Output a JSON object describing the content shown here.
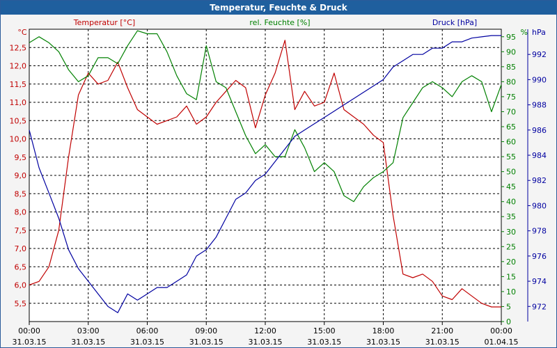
{
  "window": {
    "title": "Temperatur, Feuchte & Druck"
  },
  "colors": {
    "temperature": "#c00000",
    "humidity": "#008000",
    "pressure": "#0000a0",
    "titlebar": "#1f5f9e"
  },
  "chart_data": {
    "type": "line",
    "title": "Temperatur, Feuchte & Druck",
    "grid": true,
    "x_ticks": [
      {
        "time": "00:00",
        "date": "31.03.15"
      },
      {
        "time": "03:00",
        "date": "31.03.15"
      },
      {
        "time": "06:00",
        "date": "31.03.15"
      },
      {
        "time": "09:00",
        "date": "31.03.15"
      },
      {
        "time": "12:00",
        "date": "31.03.15"
      },
      {
        "time": "15:00",
        "date": "31.03.15"
      },
      {
        "time": "18:00",
        "date": "31.03.15"
      },
      {
        "time": "21:00",
        "date": "31.03.15"
      },
      {
        "time": "00:00",
        "date": "01.04.15"
      }
    ],
    "x_unit": "hours",
    "xlim": [
      0,
      24
    ],
    "axes": {
      "temperature": {
        "label": "Temperatur [°C]",
        "unit": "°C",
        "ylim": [
          5.0,
          13.0
        ],
        "ticks": [
          "5,5",
          "6,0",
          "6,5",
          "7,0",
          "7,5",
          "8,0",
          "8,5",
          "9,0",
          "9,5",
          "10,0",
          "10,5",
          "11,0",
          "11,5",
          "12,0",
          "12,5"
        ]
      },
      "humidity": {
        "label": "rel. Feuchte [%]",
        "unit": "%",
        "ylim": [
          0,
          97.5
        ],
        "ticks": [
          "0",
          "5",
          "10",
          "15",
          "20",
          "25",
          "30",
          "35",
          "40",
          "45",
          "50",
          "55",
          "60",
          "65",
          "70",
          "75",
          "80",
          "85",
          "90",
          "95"
        ]
      },
      "pressure": {
        "label": "Druck [hPa]",
        "unit": "hPa",
        "ylim": [
          970.8,
          994.0
        ],
        "ticks": [
          "972",
          "974",
          "976",
          "978",
          "980",
          "982",
          "984",
          "986",
          "988",
          "990",
          "992"
        ]
      }
    },
    "series": [
      {
        "name": "Temperatur [°C]",
        "axis": "temperature",
        "x": [
          0,
          0.5,
          1,
          1.5,
          2,
          2.5,
          3,
          3.5,
          4,
          4.5,
          5,
          5.5,
          6,
          6.5,
          7,
          7.5,
          8,
          8.5,
          9,
          9.5,
          10,
          10.5,
          11,
          11.5,
          12,
          12.5,
          13,
          13.5,
          14,
          14.5,
          15,
          15.5,
          16,
          16.5,
          17,
          17.5,
          18,
          18.5,
          19,
          19.5,
          20,
          20.5,
          21,
          21.5,
          22,
          22.5,
          23,
          23.5,
          24
        ],
        "values": [
          6.0,
          6.1,
          6.5,
          7.5,
          9.5,
          11.2,
          11.8,
          11.5,
          11.6,
          12.1,
          11.4,
          10.8,
          10.6,
          10.4,
          10.5,
          10.6,
          10.9,
          10.4,
          10.6,
          11.0,
          11.3,
          11.6,
          11.4,
          10.3,
          11.2,
          11.8,
          12.7,
          10.8,
          11.3,
          10.9,
          11.0,
          11.8,
          10.8,
          10.6,
          10.4,
          10.1,
          9.9,
          7.9,
          6.3,
          6.2,
          6.3,
          6.1,
          5.7,
          5.6,
          5.9,
          5.7,
          5.5,
          5.4,
          5.4
        ]
      },
      {
        "name": "rel. Feuchte [%]",
        "axis": "humidity",
        "x": [
          0,
          0.5,
          1,
          1.5,
          2,
          2.5,
          3,
          3.5,
          4,
          4.5,
          5,
          5.5,
          6,
          6.5,
          7,
          7.5,
          8,
          8.5,
          9,
          9.5,
          10,
          10.5,
          11,
          11.5,
          12,
          12.5,
          13,
          13.5,
          14,
          14.5,
          15,
          15.5,
          16,
          16.5,
          17,
          17.5,
          18,
          18.5,
          19,
          19.5,
          20,
          20.5,
          21,
          21.5,
          22,
          22.5,
          23,
          23.5,
          24
        ],
        "values": [
          93,
          95,
          93,
          90,
          84,
          80,
          82,
          88,
          88,
          86,
          92,
          97,
          96,
          96,
          90,
          82,
          76,
          74,
          92,
          80,
          78,
          70,
          62,
          56,
          59,
          55,
          55,
          64,
          58,
          50,
          53,
          50,
          42,
          40,
          45,
          48,
          50,
          53,
          68,
          73,
          78,
          80,
          78,
          75,
          80,
          82,
          80,
          70,
          79
        ]
      },
      {
        "name": "Druck [hPa]",
        "axis": "pressure",
        "x": [
          0,
          0.5,
          1,
          1.5,
          2,
          2.5,
          3,
          3.5,
          4,
          4.5,
          5,
          5.5,
          6,
          6.5,
          7,
          7.5,
          8,
          8.5,
          9,
          9.5,
          10,
          10.5,
          11,
          11.5,
          12,
          12.5,
          13,
          13.5,
          14,
          14.5,
          15,
          15.5,
          16,
          16.5,
          17,
          17.5,
          18,
          18.5,
          19,
          19.5,
          20,
          20.5,
          21,
          21.5,
          22,
          22.5,
          23,
          23.5,
          24
        ],
        "values": [
          986,
          983,
          981,
          979,
          976.5,
          975,
          974,
          973,
          972,
          971.5,
          973,
          972.5,
          973,
          973.5,
          973.5,
          974,
          974.5,
          976,
          976.5,
          977.5,
          979,
          980.5,
          981,
          982,
          982.5,
          983.5,
          984.5,
          985.5,
          986,
          986.5,
          987,
          987.5,
          988,
          988.5,
          989,
          989.5,
          990,
          991,
          991.5,
          992,
          992,
          992.5,
          992.5,
          993,
          993,
          993.3,
          993.4,
          993.5,
          993.5
        ]
      }
    ]
  }
}
